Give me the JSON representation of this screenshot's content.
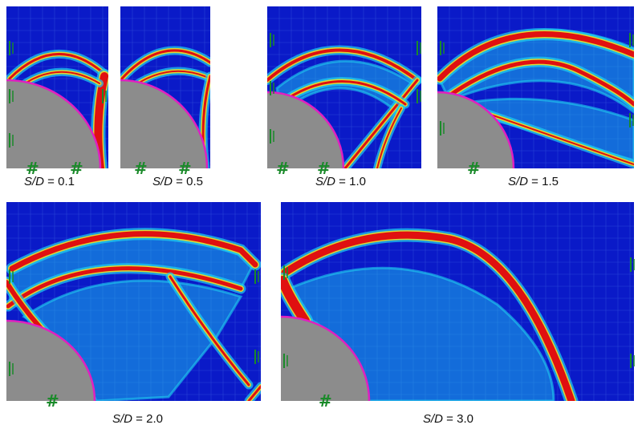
{
  "figure": {
    "panels": [
      {
        "id": "p1",
        "label_var": "S/D",
        "label_eq": " = 0.1"
      },
      {
        "id": "p2",
        "label_var": "S/D",
        "label_eq": " =  0.5"
      },
      {
        "id": "p3",
        "label_var": "S/D",
        "label_eq": " = 1.0"
      },
      {
        "id": "p4",
        "label_var": "S/D",
        "label_eq": " = 1.5"
      },
      {
        "id": "p5",
        "label_var": "S/D",
        "label_eq": " = 2.0"
      },
      {
        "id": "p6",
        "label_var": "S/D",
        "label_eq": " = 3.0"
      }
    ],
    "colors": {
      "background": "#0a1ac8",
      "grid": "#3a5ae0",
      "cylinder": "#8c8c8c",
      "cylinder_edge": "#e020c0",
      "high": "#e01010",
      "mid": "#f0e020",
      "low": "#20d0f0",
      "marker": "#1a8a2a"
    }
  }
}
